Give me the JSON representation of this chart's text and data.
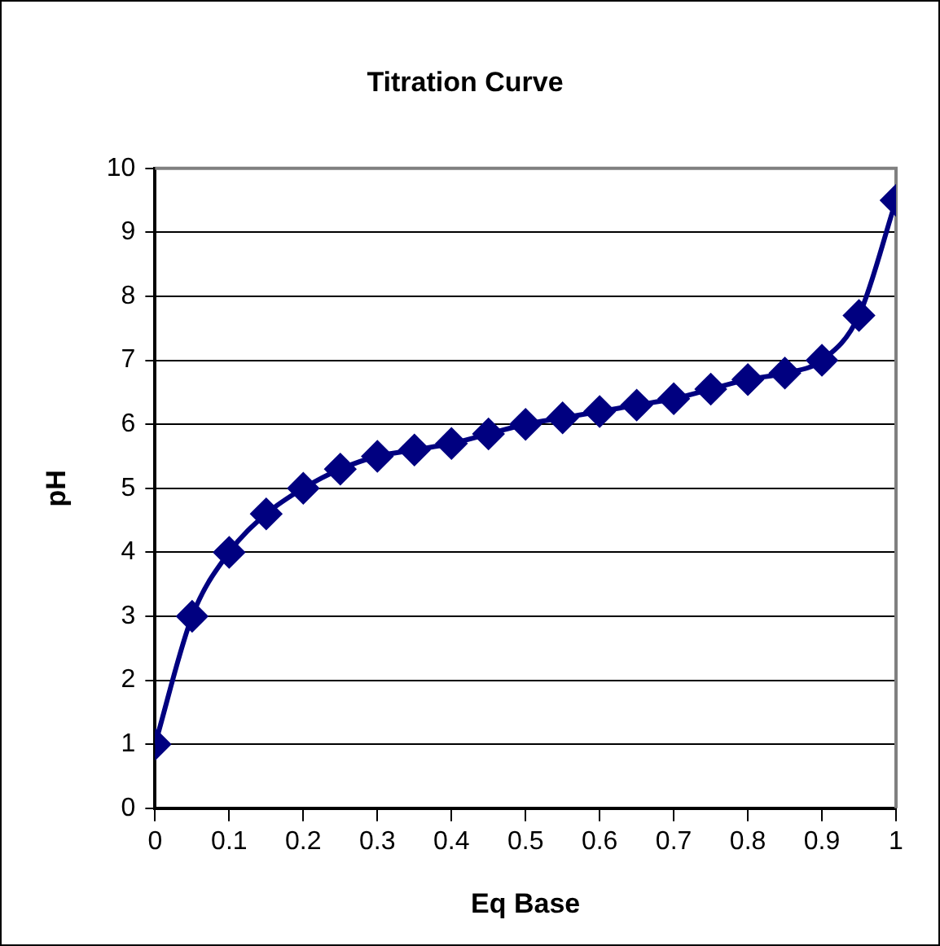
{
  "chart_data": {
    "type": "line",
    "title": "Titration Curve",
    "xlabel": "Eq Base",
    "ylabel": "pH",
    "x": [
      0,
      0.05,
      0.1,
      0.15,
      0.2,
      0.25,
      0.3,
      0.35,
      0.4,
      0.45,
      0.5,
      0.55,
      0.6,
      0.65,
      0.7,
      0.75,
      0.8,
      0.85,
      0.9,
      0.95,
      1
    ],
    "series": [
      {
        "color": "#000080",
        "values": [
          1,
          3,
          4,
          4.6,
          5,
          5.3,
          5.5,
          5.6,
          5.7,
          5.85,
          6,
          6.1,
          6.2,
          6.3,
          6.4,
          6.55,
          6.7,
          6.8,
          7,
          7.7,
          9.5
        ]
      }
    ],
    "xlim": [
      0,
      1
    ],
    "xticks": [
      0,
      0.1,
      0.2,
      0.3,
      0.4,
      0.5,
      0.6,
      0.7,
      0.8,
      0.9,
      1
    ],
    "ylim": [
      0,
      10
    ],
    "yticks": [
      0,
      1,
      2,
      3,
      4,
      5,
      6,
      7,
      8,
      9,
      10
    ],
    "grid": "y",
    "legend": false,
    "marker": "diamond",
    "line_style": "solid"
  }
}
